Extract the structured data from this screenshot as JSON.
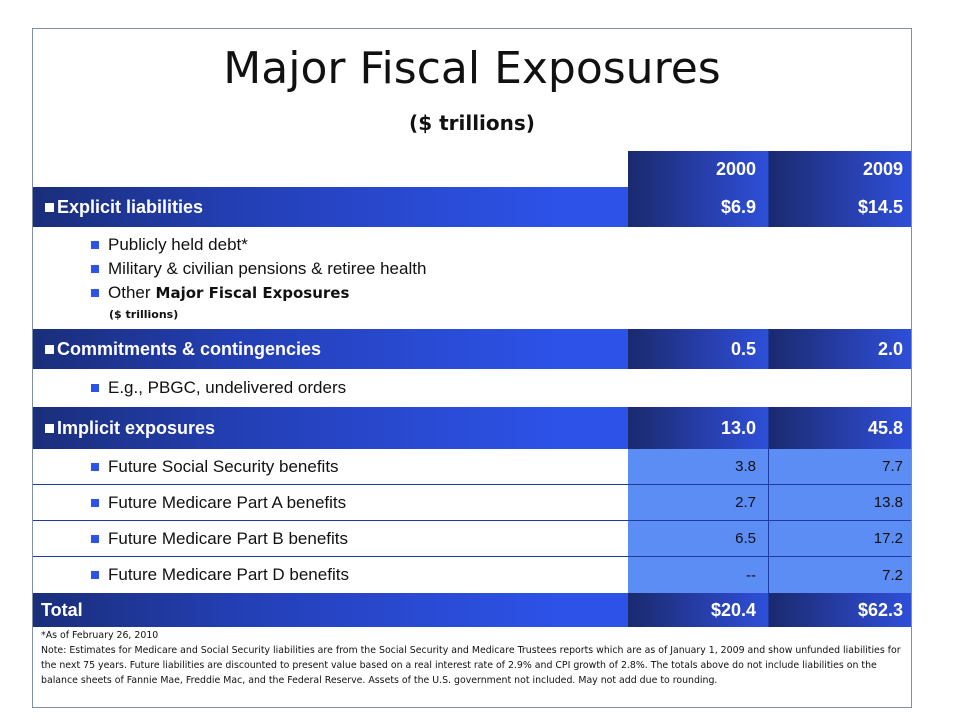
{
  "title": "Major Fiscal Exposures",
  "subtitle": "($ trillions)",
  "columns": [
    "2000",
    "2009"
  ],
  "explicit": {
    "label": "Explicit liabilities",
    "v2000": "$6.9",
    "v2009": "$14.5"
  },
  "explicit_items": {
    "item1": "Publicly held debt*",
    "item2": "Military & civilian pensions & retiree health",
    "item3": "Other",
    "item3_suffix": "Major Fiscal Exposures",
    "item3_sub": "($ trillions)"
  },
  "commitments": {
    "label": "Commitments & contingencies",
    "v2000": "0.5",
    "v2009": "2.0"
  },
  "commitments_item": "E.g., PBGC, undelivered orders",
  "implicit": {
    "label": "Implicit exposures",
    "v2000": "13.0",
    "v2009": "45.8"
  },
  "implicit_items": [
    {
      "label": "Future Social Security benefits",
      "v2000": "3.8",
      "v2009": "7.7"
    },
    {
      "label": "Future Medicare Part A benefits",
      "v2000": "2.7",
      "v2009": "13.8"
    },
    {
      "label": "Future Medicare Part B benefits",
      "v2000": "6.5",
      "v2009": "17.2"
    },
    {
      "label": "Future Medicare Part D benefits",
      "v2000": "--",
      "v2009": "7.2"
    }
  ],
  "total": {
    "label": "Total",
    "v2000": "$20.4",
    "v2009": "$62.3"
  },
  "notes": {
    "asof": "*As of February 26, 2010",
    "note": "Note:  Estimates for Medicare and Social Security liabilities are from the Social Security and Medicare Trustees reports which are as of January 1, 2009 and show unfunded liabilities for the next 75 years.   Future liabilities are discounted to present value based on a real interest rate of 2.9% and CPI growth of 2.8%.  The totals above do not include liabilities on the balance sheets of Fannie Mae, Freddie Mac, and the Federal Reserve.  Assets of the U.S. government not included. May not add due to rounding."
  },
  "colors": {
    "dark_blue": "#1a2e7a",
    "bright_blue": "#2d52e8",
    "light_blue": "#5b8df5"
  }
}
